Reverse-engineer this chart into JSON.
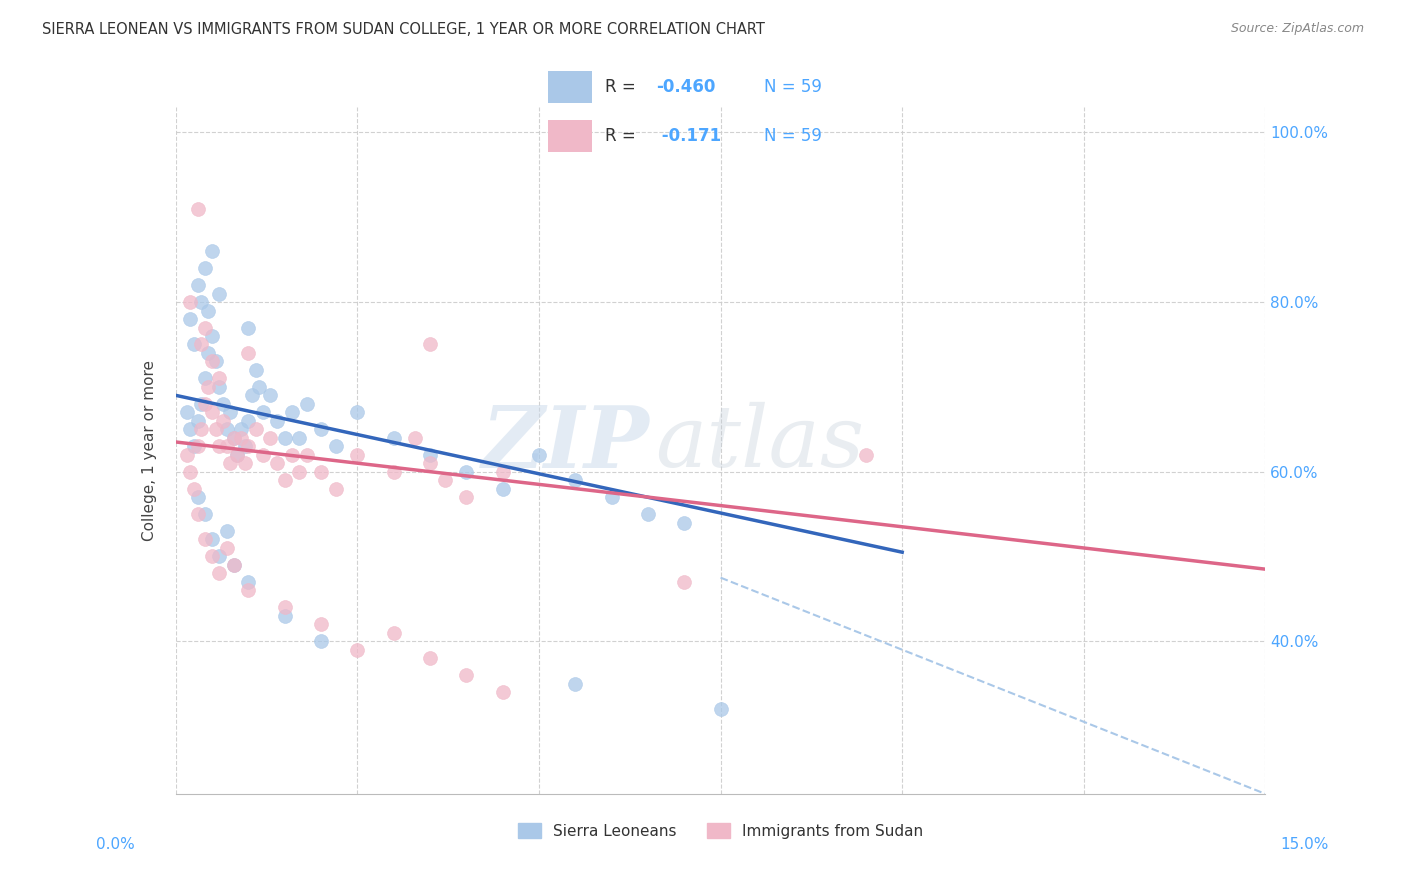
{
  "title": "SIERRA LEONEAN VS IMMIGRANTS FROM SUDAN COLLEGE, 1 YEAR OR MORE CORRELATION CHART",
  "source": "Source: ZipAtlas.com",
  "ylabel": "College, 1 year or more",
  "blue_scatter": [
    [
      0.15,
      67
    ],
    [
      0.2,
      65
    ],
    [
      0.25,
      63
    ],
    [
      0.3,
      66
    ],
    [
      0.35,
      68
    ],
    [
      0.4,
      71
    ],
    [
      0.45,
      74
    ],
    [
      0.5,
      76
    ],
    [
      0.55,
      73
    ],
    [
      0.6,
      70
    ],
    [
      0.65,
      68
    ],
    [
      0.7,
      65
    ],
    [
      0.75,
      67
    ],
    [
      0.8,
      64
    ],
    [
      0.85,
      62
    ],
    [
      0.9,
      65
    ],
    [
      0.95,
      63
    ],
    [
      1.0,
      66
    ],
    [
      1.05,
      69
    ],
    [
      1.1,
      72
    ],
    [
      1.15,
      70
    ],
    [
      1.2,
      67
    ],
    [
      1.3,
      69
    ],
    [
      1.4,
      66
    ],
    [
      1.5,
      64
    ],
    [
      1.6,
      67
    ],
    [
      1.7,
      64
    ],
    [
      1.8,
      68
    ],
    [
      2.0,
      65
    ],
    [
      2.2,
      63
    ],
    [
      2.5,
      67
    ],
    [
      3.0,
      64
    ],
    [
      3.5,
      62
    ],
    [
      4.0,
      60
    ],
    [
      4.5,
      58
    ],
    [
      5.0,
      62
    ],
    [
      5.5,
      59
    ],
    [
      6.0,
      57
    ],
    [
      6.5,
      55
    ],
    [
      7.0,
      54
    ],
    [
      0.2,
      78
    ],
    [
      0.3,
      82
    ],
    [
      0.4,
      84
    ],
    [
      0.5,
      86
    ],
    [
      0.35,
      80
    ],
    [
      0.25,
      75
    ],
    [
      0.45,
      79
    ],
    [
      1.0,
      77
    ],
    [
      0.6,
      81
    ],
    [
      0.3,
      57
    ],
    [
      0.4,
      55
    ],
    [
      0.5,
      52
    ],
    [
      0.6,
      50
    ],
    [
      0.7,
      53
    ],
    [
      0.8,
      49
    ],
    [
      1.0,
      47
    ],
    [
      1.5,
      43
    ],
    [
      2.0,
      40
    ],
    [
      5.5,
      35
    ],
    [
      7.5,
      32
    ]
  ],
  "pink_scatter": [
    [
      0.15,
      62
    ],
    [
      0.2,
      60
    ],
    [
      0.25,
      58
    ],
    [
      0.3,
      63
    ],
    [
      0.35,
      65
    ],
    [
      0.4,
      68
    ],
    [
      0.45,
      70
    ],
    [
      0.5,
      67
    ],
    [
      0.55,
      65
    ],
    [
      0.6,
      63
    ],
    [
      0.65,
      66
    ],
    [
      0.7,
      63
    ],
    [
      0.75,
      61
    ],
    [
      0.8,
      64
    ],
    [
      0.85,
      62
    ],
    [
      0.9,
      64
    ],
    [
      0.95,
      61
    ],
    [
      1.0,
      63
    ],
    [
      1.1,
      65
    ],
    [
      1.2,
      62
    ],
    [
      1.3,
      64
    ],
    [
      1.4,
      61
    ],
    [
      1.5,
      59
    ],
    [
      1.6,
      62
    ],
    [
      1.7,
      60
    ],
    [
      1.8,
      62
    ],
    [
      2.0,
      60
    ],
    [
      2.2,
      58
    ],
    [
      2.5,
      62
    ],
    [
      3.0,
      60
    ],
    [
      3.3,
      64
    ],
    [
      3.5,
      61
    ],
    [
      3.7,
      59
    ],
    [
      4.0,
      57
    ],
    [
      4.5,
      60
    ],
    [
      0.3,
      91
    ],
    [
      0.35,
      75
    ],
    [
      0.5,
      73
    ],
    [
      0.6,
      71
    ],
    [
      3.5,
      75
    ],
    [
      0.2,
      80
    ],
    [
      0.4,
      77
    ],
    [
      1.0,
      74
    ],
    [
      9.5,
      62
    ],
    [
      0.3,
      55
    ],
    [
      0.4,
      52
    ],
    [
      0.5,
      50
    ],
    [
      0.6,
      48
    ],
    [
      0.7,
      51
    ],
    [
      0.8,
      49
    ],
    [
      1.0,
      46
    ],
    [
      1.5,
      44
    ],
    [
      2.0,
      42
    ],
    [
      3.0,
      41
    ],
    [
      3.5,
      38
    ],
    [
      4.0,
      36
    ],
    [
      4.5,
      34
    ],
    [
      7.0,
      47
    ],
    [
      2.5,
      39
    ]
  ],
  "blue_line": {
    "x": [
      0.0,
      10.0
    ],
    "y": [
      69.0,
      50.5
    ]
  },
  "pink_line": {
    "x": [
      0.0,
      15.0
    ],
    "y": [
      63.5,
      48.5
    ]
  },
  "dashed_line": {
    "x": [
      7.5,
      15.0
    ],
    "y": [
      47.5,
      22.0
    ]
  },
  "watermark_zip": "ZIP",
  "watermark_atlas": "atlas",
  "background_color": "#ffffff",
  "grid_color": "#cccccc",
  "blue_scatter_color": "#aac8e8",
  "pink_scatter_color": "#f0b8c8",
  "blue_line_color": "#3366bb",
  "pink_line_color": "#dd6688",
  "dashed_line_color": "#aac8e8",
  "right_tick_color": "#4da6ff",
  "title_fontsize": 10.5,
  "axis_label_fontsize": 11,
  "legend_r1": "R = -0.460",
  "legend_r2": "R =  -0.171",
  "legend_n": "N = 59",
  "ylim": [
    22,
    103
  ],
  "xlim": [
    0,
    15.0
  ],
  "yticks": [
    40,
    60,
    80,
    100
  ],
  "ytick_labels": [
    "40.0%",
    "60.0%",
    "80.0%",
    "100.0%"
  ]
}
